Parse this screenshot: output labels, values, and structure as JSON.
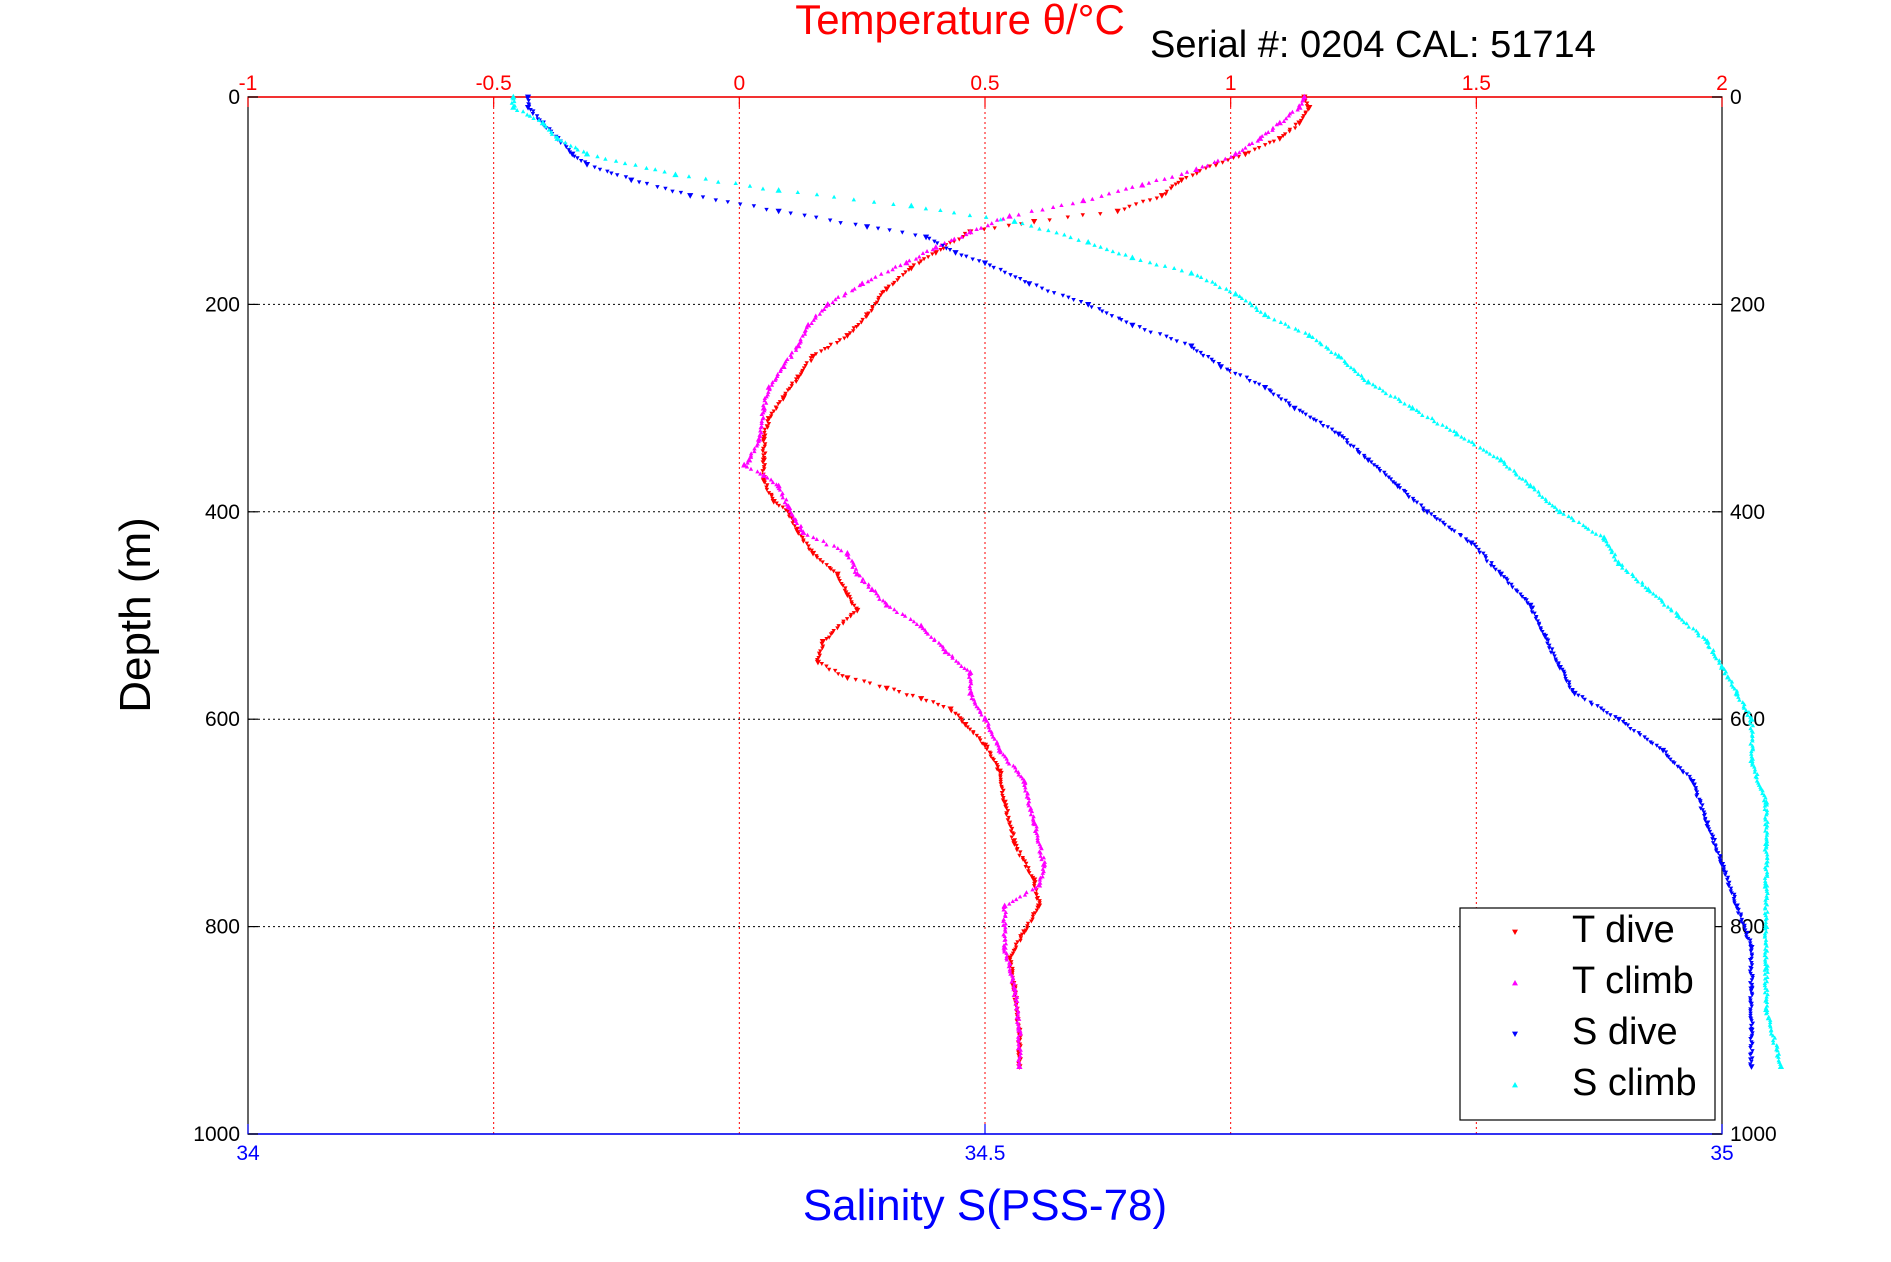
{
  "chart_data": {
    "type": "scatter",
    "title": "Temperature θ/°C",
    "annotation": "Serial #: 0204  CAL: 51714",
    "xlabel": "Salinity S(PSS-78)",
    "ylabel": "Depth (m)",
    "top_axis": {
      "label": "Temperature θ/°C",
      "range": [
        -1,
        2
      ],
      "ticks": [
        -1,
        -0.5,
        0,
        0.5,
        1,
        1.5,
        2
      ],
      "tick_labels": [
        "-1",
        "-0.5",
        "0",
        "0.5",
        "1",
        "1.5",
        "2"
      ],
      "color": "#ff0000"
    },
    "bottom_axis": {
      "label": "Salinity S(PSS-78)",
      "range": [
        34,
        35
      ],
      "ticks": [
        34,
        34.5,
        35
      ],
      "tick_labels": [
        "34",
        "34.5",
        "35"
      ],
      "color": "#0000ff"
    },
    "y_axis": {
      "label": "Depth (m)",
      "range": [
        0,
        1000
      ],
      "reversed": true,
      "ticks": [
        0,
        200,
        400,
        600,
        800,
        1000
      ],
      "tick_labels": [
        "0",
        "200",
        "400",
        "600",
        "800",
        "1000"
      ]
    },
    "grid": true,
    "legend_position": "bottom-right",
    "series": [
      {
        "name": "T dive",
        "axis": "top",
        "color": "#ff0000",
        "marker": "triangle-down",
        "points": [
          [
            1.15,
            0
          ],
          [
            1.16,
            10
          ],
          [
            1.14,
            25
          ],
          [
            1.1,
            40
          ],
          [
            1.03,
            55
          ],
          [
            0.97,
            65
          ],
          [
            0.9,
            80
          ],
          [
            0.86,
            95
          ],
          [
            0.77,
            110
          ],
          [
            0.6,
            120
          ],
          [
            0.47,
            130
          ],
          [
            0.4,
            150
          ],
          [
            0.35,
            165
          ],
          [
            0.3,
            185
          ],
          [
            0.26,
            210
          ],
          [
            0.22,
            230
          ],
          [
            0.15,
            250
          ],
          [
            0.12,
            270
          ],
          [
            0.09,
            290
          ],
          [
            0.06,
            310
          ],
          [
            0.05,
            330
          ],
          [
            0.05,
            350
          ],
          [
            0.05,
            370
          ],
          [
            0.07,
            390
          ],
          [
            0.1,
            400
          ],
          [
            0.12,
            420
          ],
          [
            0.15,
            440
          ],
          [
            0.2,
            460
          ],
          [
            0.22,
            480
          ],
          [
            0.24,
            495
          ],
          [
            0.17,
            525
          ],
          [
            0.16,
            545
          ],
          [
            0.22,
            560
          ],
          [
            0.3,
            570
          ],
          [
            0.37,
            580
          ],
          [
            0.43,
            590
          ],
          [
            0.46,
            605
          ],
          [
            0.5,
            625
          ],
          [
            0.53,
            650
          ],
          [
            0.54,
            680
          ],
          [
            0.56,
            720
          ],
          [
            0.6,
            755
          ],
          [
            0.61,
            780
          ],
          [
            0.58,
            805
          ],
          [
            0.55,
            830
          ],
          [
            0.56,
            860
          ],
          [
            0.57,
            900
          ],
          [
            0.57,
            935
          ]
        ]
      },
      {
        "name": "T climb",
        "axis": "top",
        "color": "#ff00ff",
        "marker": "triangle-up",
        "points": [
          [
            1.15,
            0
          ],
          [
            1.14,
            10
          ],
          [
            1.1,
            25
          ],
          [
            1.06,
            40
          ],
          [
            1.01,
            55
          ],
          [
            0.93,
            70
          ],
          [
            0.82,
            85
          ],
          [
            0.7,
            100
          ],
          [
            0.55,
            115
          ],
          [
            0.47,
            130
          ],
          [
            0.4,
            145
          ],
          [
            0.34,
            160
          ],
          [
            0.25,
            180
          ],
          [
            0.18,
            200
          ],
          [
            0.14,
            220
          ],
          [
            0.12,
            240
          ],
          [
            0.09,
            260
          ],
          [
            0.06,
            280
          ],
          [
            0.05,
            300
          ],
          [
            0.04,
            330
          ],
          [
            0.02,
            350
          ],
          [
            0.01,
            355
          ],
          [
            0.05,
            365
          ],
          [
            0.08,
            375
          ],
          [
            0.1,
            395
          ],
          [
            0.13,
            420
          ],
          [
            0.22,
            440
          ],
          [
            0.24,
            460
          ],
          [
            0.27,
            475
          ],
          [
            0.3,
            490
          ],
          [
            0.37,
            510
          ],
          [
            0.42,
            535
          ],
          [
            0.47,
            555
          ],
          [
            0.47,
            575
          ],
          [
            0.5,
            600
          ],
          [
            0.53,
            630
          ],
          [
            0.58,
            660
          ],
          [
            0.6,
            700
          ],
          [
            0.62,
            740
          ],
          [
            0.61,
            760
          ],
          [
            0.54,
            780
          ],
          [
            0.54,
            820
          ],
          [
            0.56,
            860
          ],
          [
            0.57,
            900
          ],
          [
            0.57,
            935
          ]
        ]
      },
      {
        "name": "S dive",
        "axis": "bottom",
        "color": "#0000ff",
        "marker": "triangle-down",
        "points": [
          [
            34.19,
            0
          ],
          [
            34.19,
            10
          ],
          [
            34.2,
            25
          ],
          [
            34.21,
            40
          ],
          [
            34.22,
            55
          ],
          [
            34.23,
            65
          ],
          [
            34.26,
            80
          ],
          [
            34.3,
            95
          ],
          [
            34.36,
            110
          ],
          [
            34.42,
            125
          ],
          [
            34.46,
            135
          ],
          [
            34.48,
            150
          ],
          [
            34.5,
            160
          ],
          [
            34.53,
            180
          ],
          [
            34.57,
            200
          ],
          [
            34.6,
            220
          ],
          [
            34.64,
            240
          ],
          [
            34.66,
            260
          ],
          [
            34.69,
            280
          ],
          [
            34.71,
            300
          ],
          [
            34.74,
            325
          ],
          [
            34.76,
            350
          ],
          [
            34.78,
            375
          ],
          [
            34.8,
            400
          ],
          [
            34.83,
            430
          ],
          [
            34.85,
            460
          ],
          [
            34.87,
            490
          ],
          [
            34.88,
            520
          ],
          [
            34.89,
            550
          ],
          [
            34.9,
            575
          ],
          [
            34.93,
            600
          ],
          [
            34.96,
            630
          ],
          [
            34.98,
            660
          ],
          [
            34.99,
            700
          ],
          [
            35.0,
            740
          ],
          [
            35.01,
            780
          ],
          [
            35.02,
            820
          ],
          [
            35.02,
            860
          ],
          [
            35.02,
            900
          ],
          [
            35.02,
            935
          ]
        ]
      },
      {
        "name": "S climb",
        "axis": "bottom",
        "color": "#00ffff",
        "marker": "triangle-up",
        "points": [
          [
            34.18,
            0
          ],
          [
            34.18,
            10
          ],
          [
            34.2,
            25
          ],
          [
            34.21,
            40
          ],
          [
            34.23,
            55
          ],
          [
            34.29,
            75
          ],
          [
            34.36,
            90
          ],
          [
            34.45,
            105
          ],
          [
            34.52,
            120
          ],
          [
            34.57,
            140
          ],
          [
            34.6,
            155
          ],
          [
            34.64,
            170
          ],
          [
            34.67,
            190
          ],
          [
            34.69,
            210
          ],
          [
            34.72,
            230
          ],
          [
            34.74,
            250
          ],
          [
            34.76,
            275
          ],
          [
            34.79,
            300
          ],
          [
            34.82,
            325
          ],
          [
            34.85,
            350
          ],
          [
            34.87,
            375
          ],
          [
            34.89,
            400
          ],
          [
            34.92,
            425
          ],
          [
            34.93,
            450
          ],
          [
            34.95,
            475
          ],
          [
            34.97,
            500
          ],
          [
            34.99,
            525
          ],
          [
            35.0,
            550
          ],
          [
            35.01,
            575
          ],
          [
            35.02,
            600
          ],
          [
            35.02,
            640
          ],
          [
            35.03,
            680
          ],
          [
            35.03,
            720
          ],
          [
            35.03,
            760
          ],
          [
            35.03,
            800
          ],
          [
            35.03,
            840
          ],
          [
            35.03,
            880
          ],
          [
            35.04,
            935
          ]
        ]
      }
    ]
  }
}
